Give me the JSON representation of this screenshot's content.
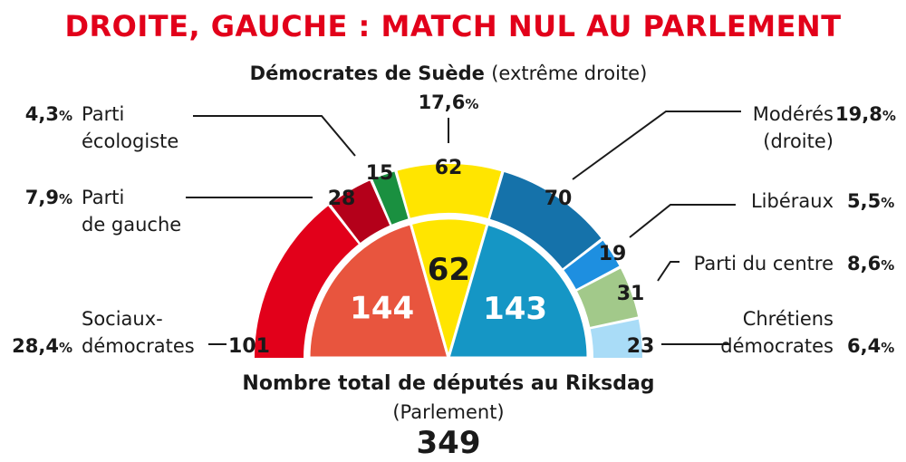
{
  "title": "DROITE, GAUCHE : MATCH NUL AU PARLEMENT",
  "footer": {
    "line1": "Nombre total de députés au Riksdag",
    "line2": "(Parlement)",
    "total": "349"
  },
  "chart_data": {
    "type": "pie",
    "subtype": "half-donut parliament",
    "total_seats": 349,
    "parties": [
      {
        "name": "Sociaux-démocrates",
        "seats": 101,
        "percent": "28,4",
        "color": "#e2001a",
        "bloc": "gauche"
      },
      {
        "name": "Parti de gauche",
        "seats": 28,
        "percent": "7,9",
        "color": "#b4001a",
        "bloc": "gauche"
      },
      {
        "name": "Parti écologiste",
        "seats": 15,
        "percent": "4,3",
        "color": "#1a9040",
        "bloc": "gauche"
      },
      {
        "name": "Démocrates de Suède",
        "note": "(extrême droite)",
        "seats": 62,
        "percent": "17,6",
        "color": "#ffe500",
        "bloc": "extreme"
      },
      {
        "name": "Modérés",
        "note": "(droite)",
        "seats": 70,
        "percent": "19,8",
        "color": "#1572aa",
        "bloc": "droite"
      },
      {
        "name": "Libéraux",
        "seats": 19,
        "percent": "5,5",
        "color": "#1e8fe0",
        "bloc": "droite"
      },
      {
        "name": "Parti du centre",
        "seats": 31,
        "percent": "8,6",
        "color": "#a2c98a",
        "bloc": "droite"
      },
      {
        "name": "Chrétiens démocrates",
        "seats": 23,
        "percent": "6,4",
        "color": "#a9dcf7",
        "bloc": "droite"
      }
    ],
    "blocs": [
      {
        "name": "gauche",
        "seats": 144,
        "color": "#e8553e"
      },
      {
        "name": "extreme",
        "seats": 62,
        "color": "#ffe500"
      },
      {
        "name": "droite",
        "seats": 143,
        "color": "#1596c5"
      }
    ],
    "labels": {
      "Sociaux-démocrates": [
        "Sociaux-",
        "démocrates"
      ],
      "Parti de gauche": [
        "Parti",
        "de gauche"
      ],
      "Parti écologiste": [
        "Parti",
        "écologiste"
      ],
      "Démocrates de Suède": [
        "Démocrates de Suède"
      ],
      "Modérés": [
        "Modérés",
        "(droite)"
      ],
      "Libéraux": [
        "Libéraux"
      ],
      "Parti du centre": [
        "Parti du centre"
      ],
      "Chrétiens démocrates": [
        "Chrétiens",
        "démocrates"
      ]
    }
  }
}
